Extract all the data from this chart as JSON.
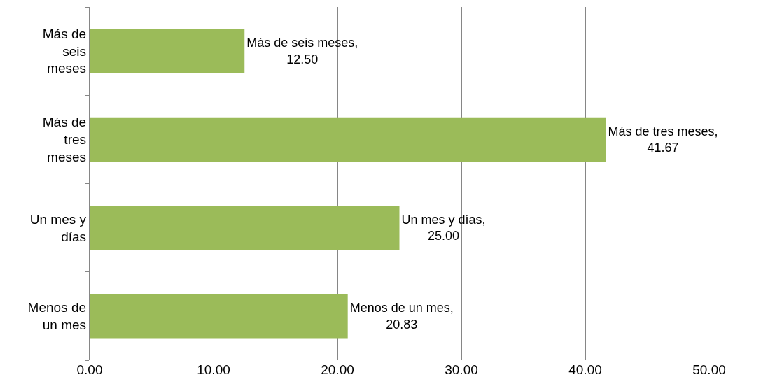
{
  "chart_data": {
    "type": "bar",
    "orientation": "horizontal",
    "categories": [
      "Más de seis meses",
      "Más de tres meses",
      "Un mes y días",
      "Menos de un mes"
    ],
    "values": [
      12.5,
      41.67,
      25.0,
      20.83
    ],
    "value_labels": [
      "Más de seis meses, 12.50",
      "Más de tres meses, 41.67",
      "Un mes y días, 25.00",
      "Menos de un mes, 20.83"
    ],
    "color": "#9bbb59",
    "xlim": [
      0,
      50
    ],
    "xticks": [
      {
        "value": 0,
        "label": "0.00"
      },
      {
        "value": 10,
        "label": "10.00"
      },
      {
        "value": 20,
        "label": "20.00"
      },
      {
        "value": 30,
        "label": "30.00"
      },
      {
        "value": 40,
        "label": "40.00"
      },
      {
        "value": 50,
        "label": "50.00"
      }
    ],
    "grid": "x"
  }
}
